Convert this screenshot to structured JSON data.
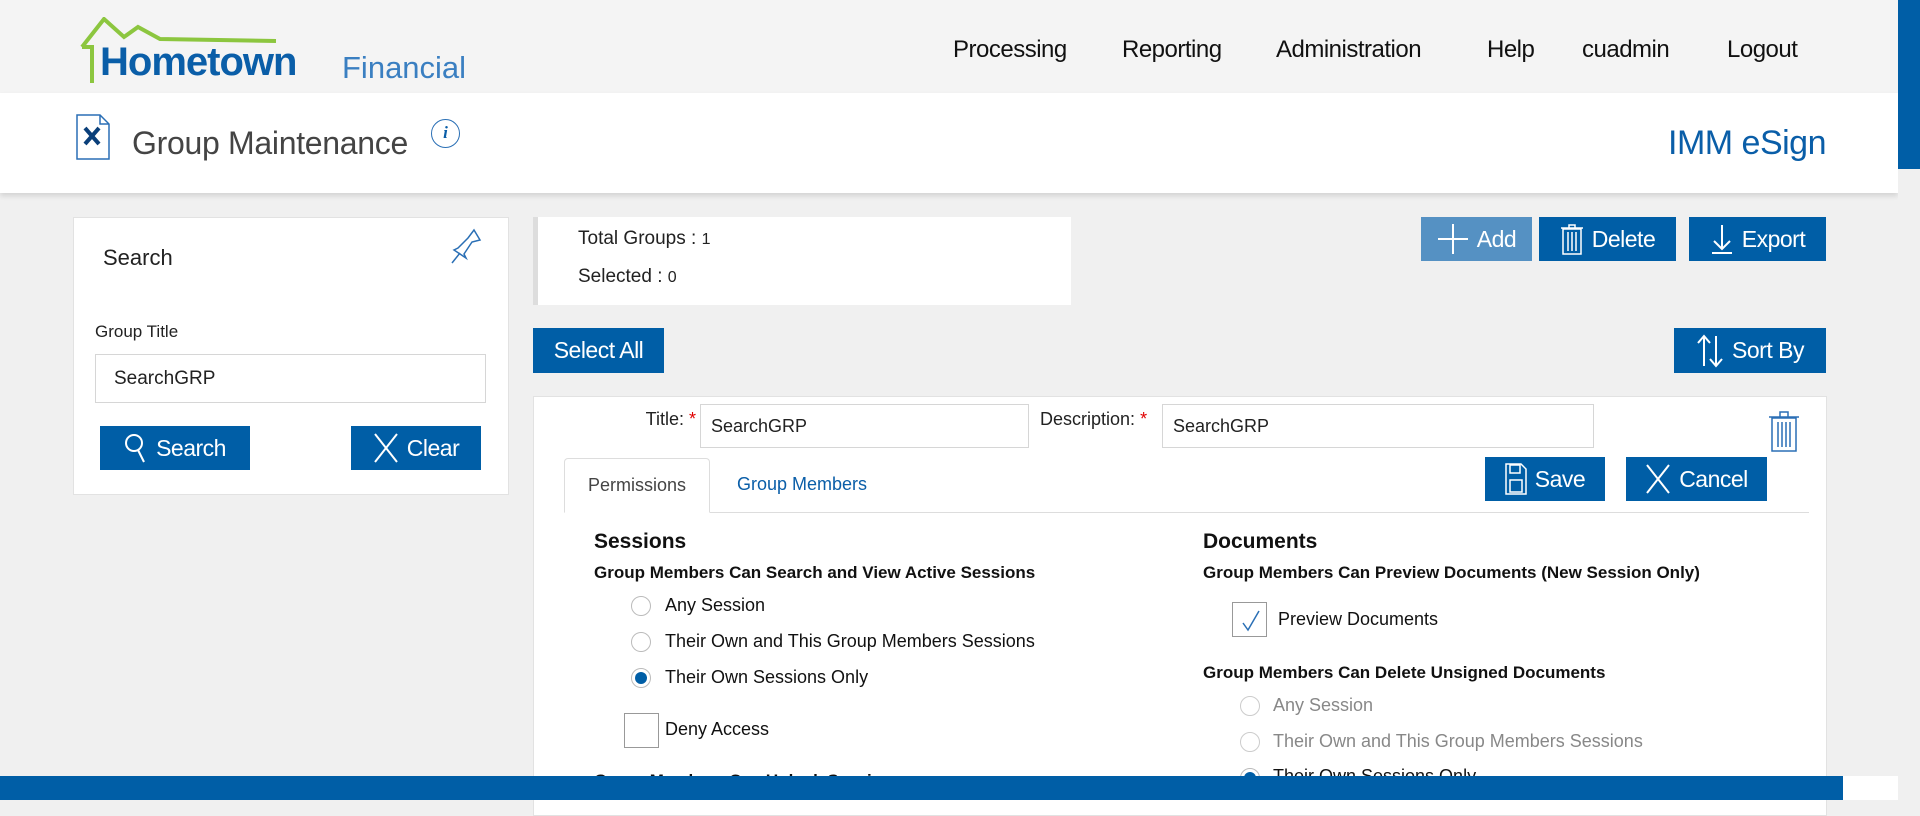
{
  "header": {
    "logo": {
      "main": "Hometown",
      "sub": "Financial"
    },
    "nav": [
      "Processing",
      "Reporting",
      "Administration",
      "Help",
      "cuadmin",
      "Logout"
    ]
  },
  "page": {
    "title": "Group Maintenance",
    "app_name": "IMM eSign"
  },
  "search_panel": {
    "title": "Search",
    "field_label": "Group Title",
    "field_value": "SearchGRP",
    "search_label": "Search",
    "clear_label": "Clear"
  },
  "stats": {
    "total_label": "Total Groups :",
    "total_value": "1",
    "selected_label": "Selected :",
    "selected_value": "0"
  },
  "toolbar": {
    "add": "Add",
    "delete": "Delete",
    "export": "Export",
    "select_all": "Select All",
    "sort_by": "Sort By"
  },
  "group": {
    "title_label": "Title:",
    "title_value": "SearchGRP",
    "description_label": "Description:",
    "description_value": "SearchGRP",
    "required_mark": "*",
    "save": "Save",
    "cancel": "Cancel",
    "tabs": [
      {
        "label": "Permissions",
        "active": true
      },
      {
        "label": "Group Members",
        "active": false
      }
    ],
    "sessions": {
      "heading": "Sessions",
      "subheading": "Group Members Can Search and View Active Sessions",
      "options": [
        "Any Session",
        "Their Own and This Group Members Sessions",
        "Their Own Sessions Only"
      ],
      "selected": "Their Own Sessions Only",
      "deny_label": "Deny Access",
      "deny_checked": false,
      "next_subheading": "Group Members Can Unlock Sessions"
    },
    "documents": {
      "heading": "Documents",
      "preview_subheading": "Group Members Can Preview Documents (New Session Only)",
      "preview_label": "Preview Documents",
      "preview_checked": true,
      "delete_subheading": "Group Members Can Delete Unsigned Documents",
      "delete_options": [
        "Any Session",
        "Their Own and This Group Members Sessions",
        "Their Own Sessions Only"
      ],
      "delete_selected": "Their Own Sessions Only"
    }
  },
  "colors": {
    "primary": "#005ea6",
    "add_button": "#5591c3",
    "logo_green": "#8cc63f",
    "required": "#e00000"
  }
}
